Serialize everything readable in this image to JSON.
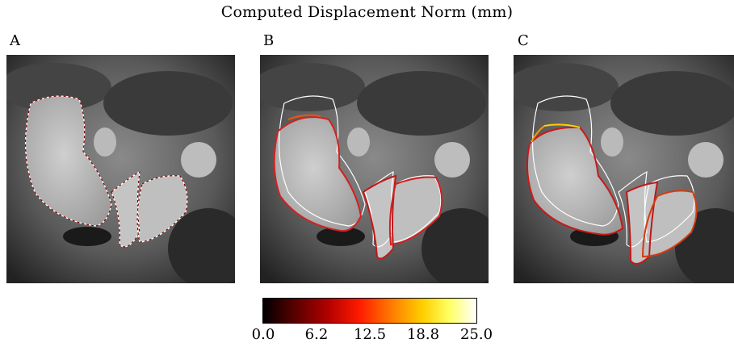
{
  "figure": {
    "title": "Computed Displacement Norm (mm)",
    "panels": [
      {
        "label": "A"
      },
      {
        "label": "B"
      },
      {
        "label": "C"
      }
    ]
  },
  "colorbar": {
    "colormap": "hot",
    "min": 0.0,
    "max": 25.0,
    "ticks": [
      "0.0",
      "6.2",
      "12.5",
      "18.8",
      "25.0"
    ]
  },
  "colors": {
    "reference_contour": "#ffffff",
    "low_displacement": "#7a0000",
    "mid_displacement": "#d42020",
    "high_displacement": "#ffd000"
  }
}
